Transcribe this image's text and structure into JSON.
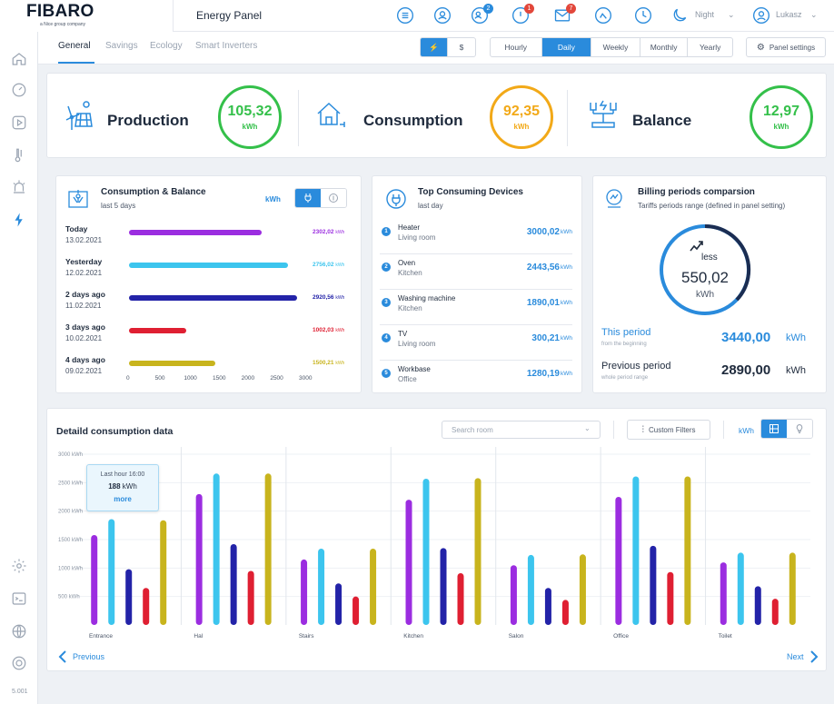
{
  "brand": {
    "name": "FIBARO",
    "sub": "a Nice group company"
  },
  "header": {
    "title": "Energy Panel",
    "badges": {
      "users": "2",
      "alarm": "1",
      "mail": "7"
    },
    "mode": "Night",
    "user": "Lukasz"
  },
  "sidebar": {
    "icons": [
      "home-icon",
      "gauge-icon",
      "play-icon",
      "thermometer-icon",
      "alarm-icon",
      "energy-icon",
      "settings-icon",
      "terminal-icon",
      "globe-icon",
      "lifebuoy-icon"
    ],
    "version": "5.001"
  },
  "tabs": [
    "General",
    "Savings",
    "Ecology",
    "Smart Inverters"
  ],
  "unit_toggle": {
    "energy": "⚡",
    "money": "$"
  },
  "periods": [
    "Hourly",
    "Daily",
    "Weekly",
    "Monthly",
    "Yearly"
  ],
  "selected_period": "Daily",
  "panel_settings": "Panel settings",
  "kpis": [
    {
      "label": "Production",
      "value": "105,32",
      "unit": "kWh",
      "color": "#34c04a"
    },
    {
      "label": "Consumption",
      "value": "92,35",
      "unit": "kWh",
      "color": "#f2a918"
    },
    {
      "label": "Balance",
      "value": "12,97",
      "unit": "kWh",
      "color": "#34c04a"
    }
  ],
  "consumption_balance": {
    "title": "Consumption & Balance",
    "subtitle": "last 5 days",
    "unit": "kWh",
    "rows": [
      {
        "label": "Today",
        "date": "13.02.2021",
        "value": 2302.02,
        "text": "2302,02",
        "color": "#9b2de0"
      },
      {
        "label": "Yesterday",
        "date": "12.02.2021",
        "value": 2756.02,
        "text": "2756,02",
        "color": "#3cc5ee"
      },
      {
        "label": "2 days ago",
        "date": "11.02.2021",
        "value": 2920.56,
        "text": "2920,56",
        "color": "#2323a8"
      },
      {
        "label": "3 days ago",
        "date": "10.02.2021",
        "value": 1002.03,
        "text": "1002,03",
        "color": "#df1f32"
      },
      {
        "label": "4 days ago",
        "date": "09.02.2021",
        "value": 1500.21,
        "text": "1500,21",
        "color": "#c8b41d"
      }
    ],
    "row_unit": "kWh",
    "axis": [
      "0",
      "500",
      "1000",
      "1500",
      "2000",
      "2500",
      "3000"
    ],
    "axis_max": 3000
  },
  "top_devices": {
    "title": "Top Consuming Devices",
    "subtitle": "last day",
    "unit": "kWh",
    "items": [
      {
        "num": "1",
        "name": "Heater",
        "room": "Living room",
        "value": "3000,02"
      },
      {
        "num": "2",
        "name": "Oven",
        "room": "Kitchen",
        "value": "2443,56"
      },
      {
        "num": "3",
        "name": "Washing machine",
        "room": "Kitchen",
        "value": "1890,01"
      },
      {
        "num": "4",
        "name": "TV",
        "room": "Living room",
        "value": "300,21"
      },
      {
        "num": "5",
        "name": "Workbase",
        "room": "Office",
        "value": "1280,19"
      }
    ]
  },
  "billing": {
    "title": "Billing periods comparsion",
    "subtitle": "Tariffs periods range (defined in panel setting)",
    "circle_label": "less",
    "circle_value": "550,02",
    "circle_unit": "kWh",
    "this_label": "This period",
    "this_sub": "from the beginning",
    "this_value": "3440,00",
    "this_unit": "kWh",
    "prev_label": "Previous period",
    "prev_sub": "whole period range",
    "prev_value": "2890,00",
    "prev_unit": "kWh"
  },
  "detail": {
    "title": "Detaild consumption data",
    "search_placeholder": "Search room",
    "custom_filters": "Custom Filters",
    "unit": "kWh",
    "tooltip": {
      "title": "Last hour 16:00",
      "value": "188",
      "unit": "kWh",
      "link": "more"
    },
    "prev": "Previous",
    "next": "Next"
  },
  "chart_data": {
    "type": "bar",
    "title": "Detaild consumption data",
    "categories": [
      "Entrance",
      "Hal",
      "Stairs",
      "Kitchen",
      "Salon",
      "Office",
      "Toilet"
    ],
    "ytick_labels": [
      "3000 kWh",
      "2500 kWh",
      "2000 kWh",
      "1500 kWh",
      "1000 kWh",
      "500 kWh"
    ],
    "yticks": [
      3000,
      2500,
      2000,
      1500,
      1000,
      500
    ],
    "ylim": [
      0,
      3000
    ],
    "series": [
      {
        "color": "#9b2de0",
        "values": [
          1580,
          2300,
          1150,
          2200,
          1050,
          2250,
          1100
        ]
      },
      {
        "color": "#3cc5ee",
        "values": [
          1860,
          2660,
          1340,
          2570,
          1230,
          2610,
          1270
        ]
      },
      {
        "color": "#2323a8",
        "values": [
          980,
          1420,
          730,
          1350,
          650,
          1390,
          680
        ]
      },
      {
        "color": "#df1f32",
        "values": [
          650,
          950,
          500,
          910,
          440,
          930,
          460
        ]
      },
      {
        "color": "#c8b41d",
        "values": [
          1840,
          2660,
          1340,
          2580,
          1240,
          2610,
          1270
        ]
      }
    ]
  }
}
